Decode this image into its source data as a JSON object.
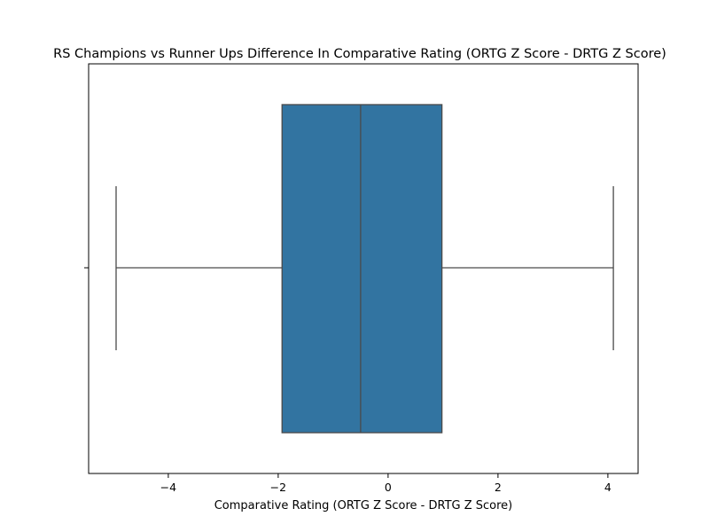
{
  "chart_data": {
    "type": "boxplot",
    "title": "RS Champions vs Runner Ups Difference In Comparative Rating (ORTG Z Score - DRTG Z Score)",
    "xlabel": "Comparative Rating (ORTG Z Score - DRTG Z Score)",
    "ylabel": "",
    "xlim": [
      -5.45,
      4.55
    ],
    "x_ticks": [
      -4,
      -2,
      0,
      2,
      4
    ],
    "x_tick_labels": [
      "−4",
      "−2",
      "0",
      "2",
      "4"
    ],
    "grid": false,
    "legend": "none",
    "box": {
      "min": -4.95,
      "q1": -1.93,
      "median": -0.5,
      "q3": 0.98,
      "max": 4.1,
      "color": "#3274a1",
      "line_color": "#4a4a4a"
    }
  }
}
